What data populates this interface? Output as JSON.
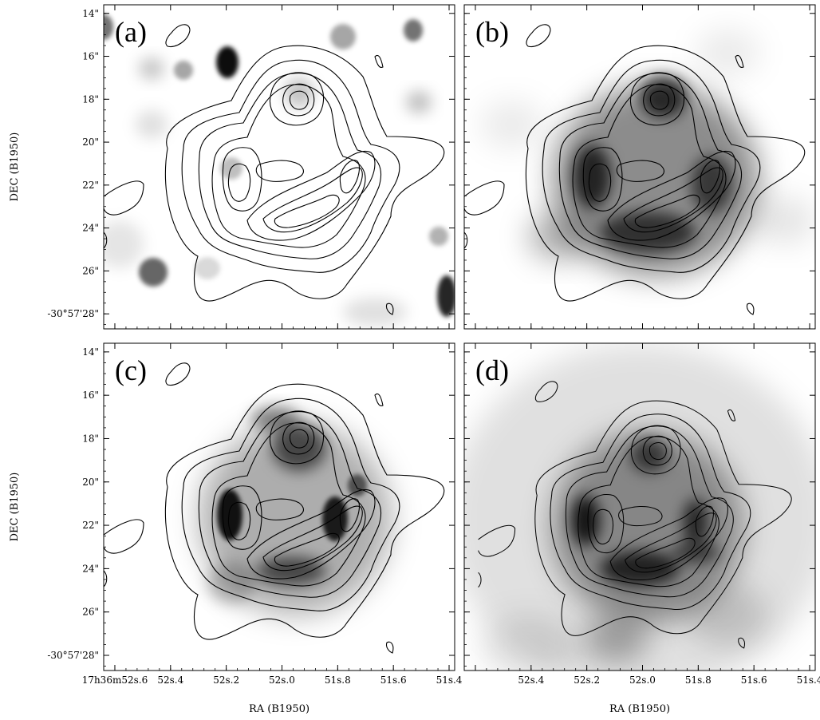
{
  "figure": {
    "panels": [
      {
        "label": "(a)"
      },
      {
        "label": "(b)"
      },
      {
        "label": "(c)"
      },
      {
        "label": "(d)"
      }
    ],
    "x_axis_title": "RA (B1950)",
    "y_axis_title": "DEC (B1950)"
  },
  "chart_data": {
    "type": "heatmap",
    "description_free": true,
    "x_axis": {
      "label": "RA (B1950)",
      "ticks": [
        {
          "value": 52.6,
          "label": "17h36m52s.6"
        },
        {
          "value": 52.4,
          "label": "52s.4"
        },
        {
          "value": 52.2,
          "label": "52s.2"
        },
        {
          "value": 52.0,
          "label": "52s.0"
        },
        {
          "value": 51.8,
          "label": "51s.8"
        },
        {
          "value": 51.6,
          "label": "51s.6"
        },
        {
          "value": 51.4,
          "label": "51s.4"
        }
      ],
      "range": [
        52.64,
        51.38
      ]
    },
    "y_axis": {
      "label": "DEC (B1950)",
      "ticks": [
        {
          "value": 14,
          "label": "14\""
        },
        {
          "value": 16,
          "label": "16\""
        },
        {
          "value": 18,
          "label": "18\""
        },
        {
          "value": 20,
          "label": "20\""
        },
        {
          "value": 22,
          "label": "22\""
        },
        {
          "value": 24,
          "label": "24\""
        },
        {
          "value": 26,
          "label": "26\""
        },
        {
          "value": 28,
          "label": "-30°57'28\""
        }
      ],
      "range": [
        13.6,
        28.7
      ]
    },
    "panels": [
      "(a)",
      "(b)",
      "(c)",
      "(d)"
    ],
    "grid": false,
    "colormap": "grayscale"
  }
}
